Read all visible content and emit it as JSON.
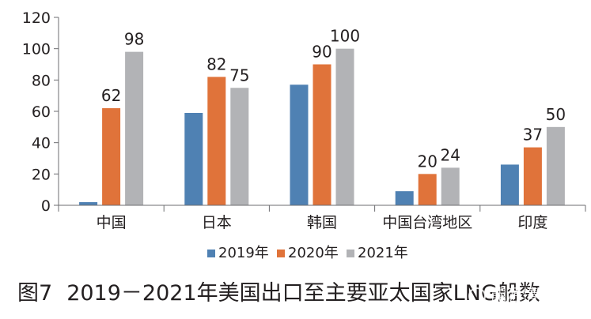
{
  "chart_data": {
    "type": "bar",
    "title": "2019－2021年美国出口至主要亚太国家LNG船数",
    "figure_number": "图7",
    "categories": [
      "中国",
      "日本",
      "韩国",
      "中国台湾地区",
      "印度"
    ],
    "series": [
      {
        "name": "2019年",
        "values": [
          2,
          59,
          77,
          9,
          26
        ],
        "labels": [
          "",
          "",
          "",
          "",
          ""
        ],
        "color": "#4f81b3"
      },
      {
        "name": "2020年",
        "values": [
          62,
          82,
          90,
          20,
          37
        ],
        "labels": [
          "62",
          "82",
          "90",
          "20",
          "37"
        ],
        "color": "#e0733a"
      },
      {
        "name": "2021年",
        "values": [
          98,
          75,
          100,
          24,
          50
        ],
        "labels": [
          "98",
          "75",
          "100",
          "24",
          "50"
        ],
        "color": "#b2b3b6"
      }
    ],
    "yticks": [
      "0",
      "20",
      "40",
      "60",
      "80",
      "100",
      "120"
    ],
    "ylim": [
      0,
      120
    ],
    "xlabel": "",
    "ylabel": "",
    "legend_position": "bottom",
    "grid": false
  },
  "caption": {
    "number": "图7",
    "text": "2019－2021年美国出口至主要亚太国家LNG船数"
  },
  "watermark": {
    "text": "能源情报"
  }
}
